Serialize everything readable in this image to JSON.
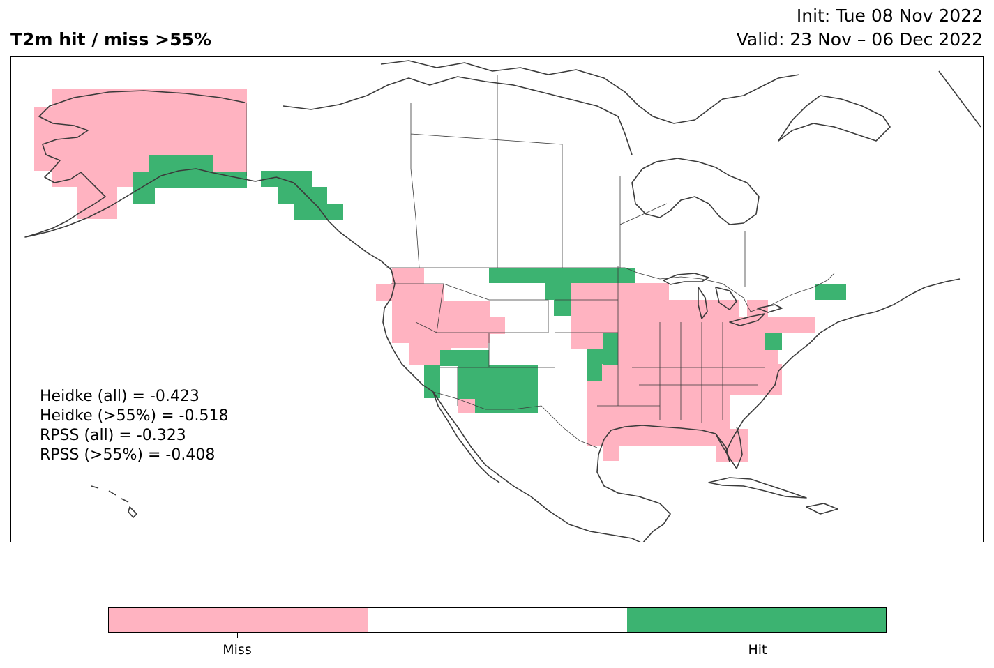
{
  "title": "T2m hit / miss  >55%",
  "init": "Init: Tue 08 Nov 2022",
  "valid": "Valid: 23 Nov – 06 Dec 2022",
  "stats": [
    "Heidke (all) = -0.423",
    "Heidke (>55%) = -0.518",
    "RPSS (all) = -0.323",
    "RPSS (>55%) = -0.408"
  ],
  "colors": {
    "miss": "#ffb3c1",
    "neutral": "#ffffff",
    "hit": "#3cb371",
    "coast": "#3a3a3a"
  },
  "colorbar": {
    "labels": [
      "Miss",
      "Hit"
    ]
  },
  "regions": {
    "miss": [
      "Alaska interior and west coast",
      "Pacific Northwest and Great Basin",
      "Central and Southern Plains",
      "Midwest, Southeast and Northeast US",
      "Florida"
    ],
    "hit": [
      "Southern Alaska coast",
      "Alaska panhandle",
      "Northern Plains",
      "Southwest (Arizona, New Mexico)",
      "Upper Great Lakes",
      "Kansas/Oklahoma patch",
      "Maine",
      "Delaware/New Jersey"
    ]
  }
}
